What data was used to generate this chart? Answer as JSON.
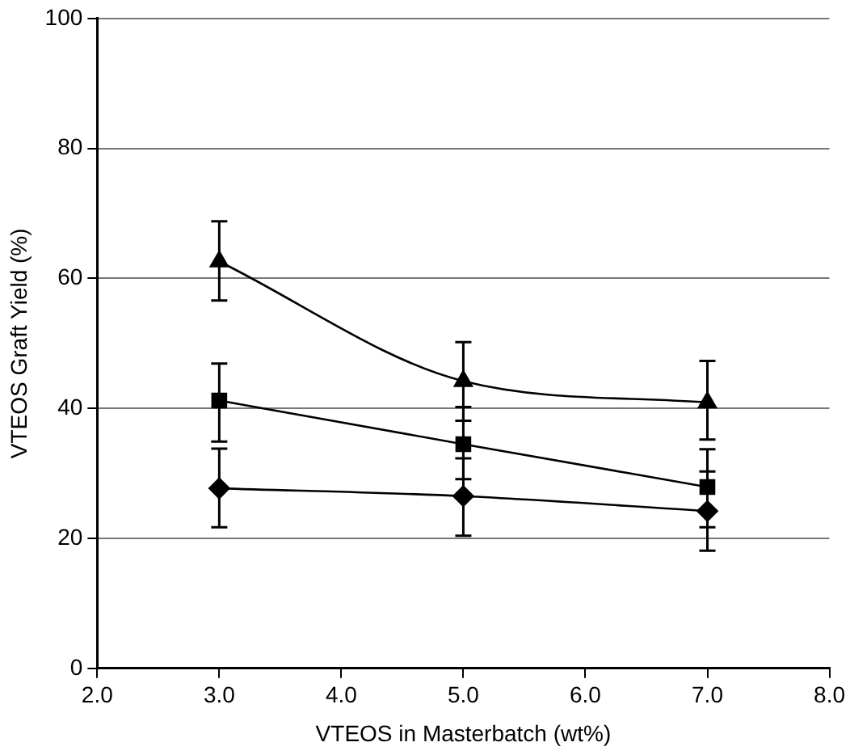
{
  "chart_data": {
    "type": "line",
    "xlabel": "VTEOS in Masterbatch (wt%)",
    "ylabel": "VTEOS Graft Yield (%)",
    "x": [
      3,
      5,
      7
    ],
    "series": [
      {
        "color": "#000000",
        "marker": "triangle",
        "values": [
          62.6,
          44.2,
          40.9
        ],
        "errors": [
          [
            56.6,
            68.8
          ],
          [
            38.1,
            50.2
          ],
          [
            35.2,
            47.3
          ]
        ]
      },
      {
        "color": "#000000",
        "marker": "square",
        "values": [
          41.2,
          34.5,
          27.9
        ],
        "errors": [
          [
            34.9,
            46.9
          ],
          [
            29.1,
            40.2
          ],
          [
            21.7,
            33.7
          ]
        ]
      },
      {
        "color": "#000000",
        "marker": "diamond",
        "values": [
          27.7,
          26.5,
          24.2
        ],
        "errors": [
          [
            21.7,
            33.8
          ],
          [
            20.4,
            32.3
          ],
          [
            18.1,
            30.3
          ]
        ]
      }
    ],
    "xlim": [
      2,
      8
    ],
    "xticks": [
      {
        "value": 2,
        "label": "2.0"
      },
      {
        "value": 3,
        "label": "3.0"
      },
      {
        "value": 4,
        "label": "4.0"
      },
      {
        "value": 5,
        "label": "5.0"
      },
      {
        "value": 6,
        "label": "6.0"
      },
      {
        "value": 7,
        "label": "7.0"
      },
      {
        "value": 8,
        "label": "8.0"
      }
    ],
    "ylim": [
      0,
      100
    ],
    "yticks": [
      0,
      20,
      40,
      60,
      80,
      100
    ],
    "grid": "y",
    "legend": false
  }
}
